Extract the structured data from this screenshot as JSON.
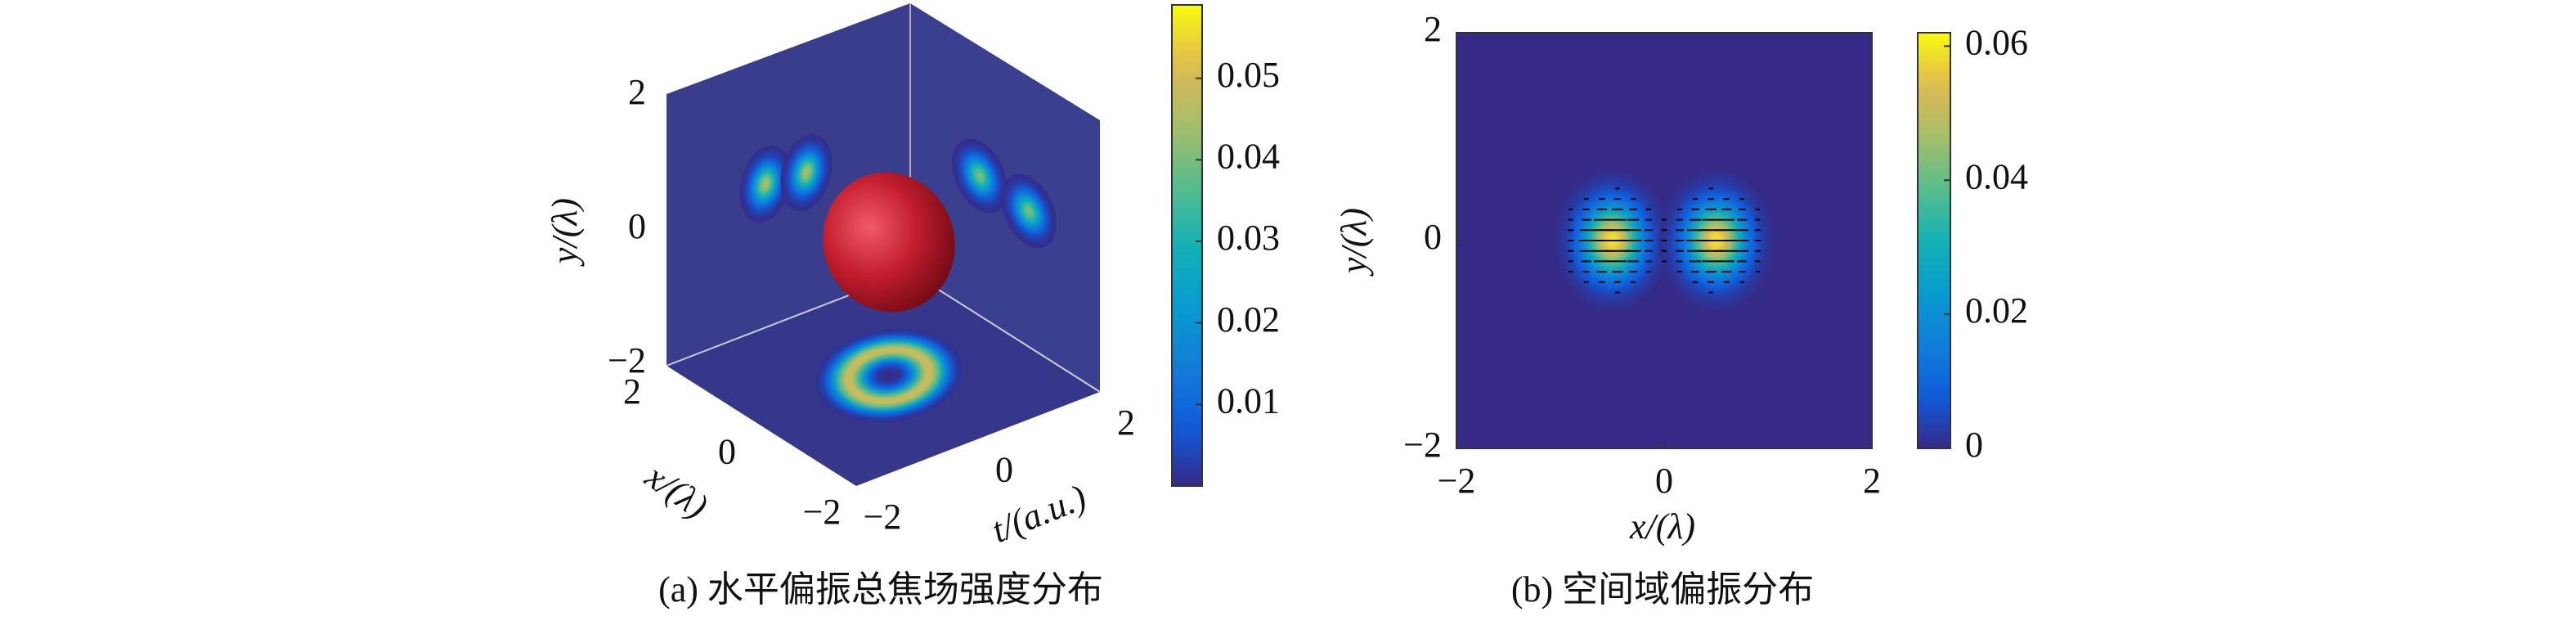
{
  "chart_data": [
    {
      "type": "isosurface3d",
      "caption": "(a) 水平偏振总焦场强度分布",
      "xlabel": "x/(λ)",
      "ylabel": "y/(λ)",
      "tlabel": "t/(a.u.)",
      "xlim": [
        -2,
        2
      ],
      "ylim": [
        -2,
        2
      ],
      "tlim": [
        -2,
        2
      ],
      "xticks": [
        2,
        0,
        {
          "value": -2,
          "label": "−2"
        }
      ],
      "yticks": [
        {
          "value": -2,
          "label": "−2"
        },
        0,
        2
      ],
      "tticks": [
        {
          "value": -2,
          "label": "−2"
        },
        0,
        2
      ],
      "clim": [
        0,
        0.059
      ],
      "cticks": [
        0.01,
        0.02,
        0.03,
        0.04,
        0.05
      ],
      "values": [
        0.045,
        0.045,
        0.04,
        0.04,
        0.05
      ]
    },
    {
      "type": "heatmap",
      "caption": "(b) 空间域偏振分布",
      "xlabel": "x/(λ)",
      "ylabel": "y/(λ)",
      "xlim": [
        -2,
        2
      ],
      "ylim": [
        -2,
        2
      ],
      "xticks": [
        {
          "value": -2,
          "label": "−2"
        },
        0,
        2
      ],
      "yticks": [
        {
          "value": -2,
          "label": "−2"
        },
        0,
        2
      ],
      "clim": [
        0,
        0.062
      ],
      "cticks": [
        0,
        0.02,
        0.04,
        0.06
      ],
      "x": [
        -0.5,
        0.5
      ],
      "y": [
        0,
        0
      ],
      "values": [
        0.06,
        0.06
      ]
    }
  ]
}
